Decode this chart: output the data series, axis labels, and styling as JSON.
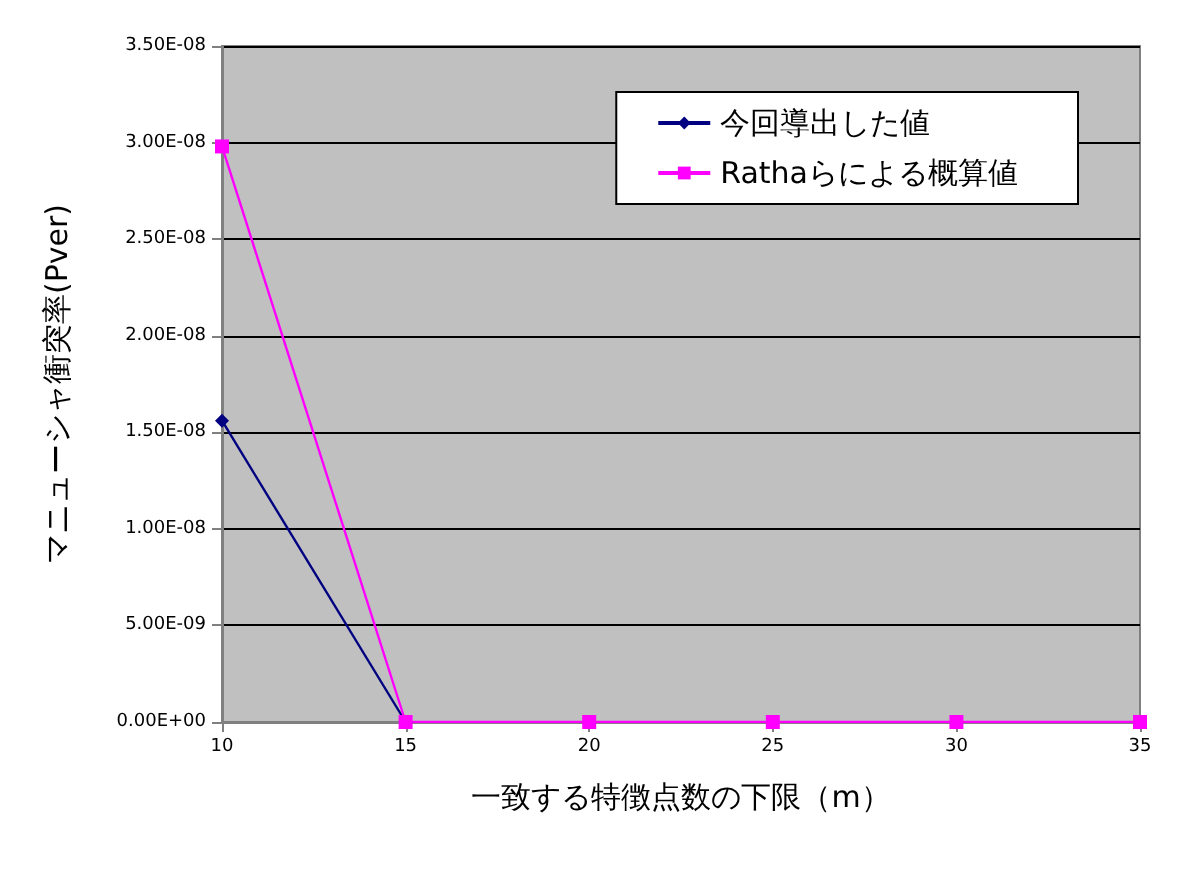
{
  "chart_data": {
    "type": "line",
    "xlabel": "一致する特徴点数の下限（m）",
    "ylabel": "マニューシャ衝突率(Pver)",
    "x": [
      10,
      15,
      20,
      25,
      30,
      35
    ],
    "series": [
      {
        "name": "今回導出した値",
        "color": "#000080",
        "marker": "diamond",
        "values": [
          1.56e-08,
          0,
          null,
          null,
          null,
          null
        ]
      },
      {
        "name": "Rathaらによる概算値",
        "color": "#ff00ff",
        "marker": "square",
        "values": [
          2.98e-08,
          0,
          0,
          0,
          0,
          0
        ]
      }
    ],
    "xlim": [
      10,
      35
    ],
    "xticks": [
      10,
      15,
      20,
      25,
      30,
      35
    ],
    "ylim": [
      0,
      3.5e-08
    ],
    "yticks": [
      {
        "value": 0,
        "label": "0.00E+00"
      },
      {
        "value": 5e-09,
        "label": "5.00E-09"
      },
      {
        "value": 1e-08,
        "label": "1.00E-08"
      },
      {
        "value": 1.5e-08,
        "label": "1.50E-08"
      },
      {
        "value": 2e-08,
        "label": "2.00E-08"
      },
      {
        "value": 2.5e-08,
        "label": "2.50E-08"
      },
      {
        "value": 3e-08,
        "label": "3.00E-08"
      },
      {
        "value": 3.5e-08,
        "label": "3.50E-08"
      }
    ],
    "grid": "y",
    "legend": "top right",
    "line_style": "solid"
  }
}
